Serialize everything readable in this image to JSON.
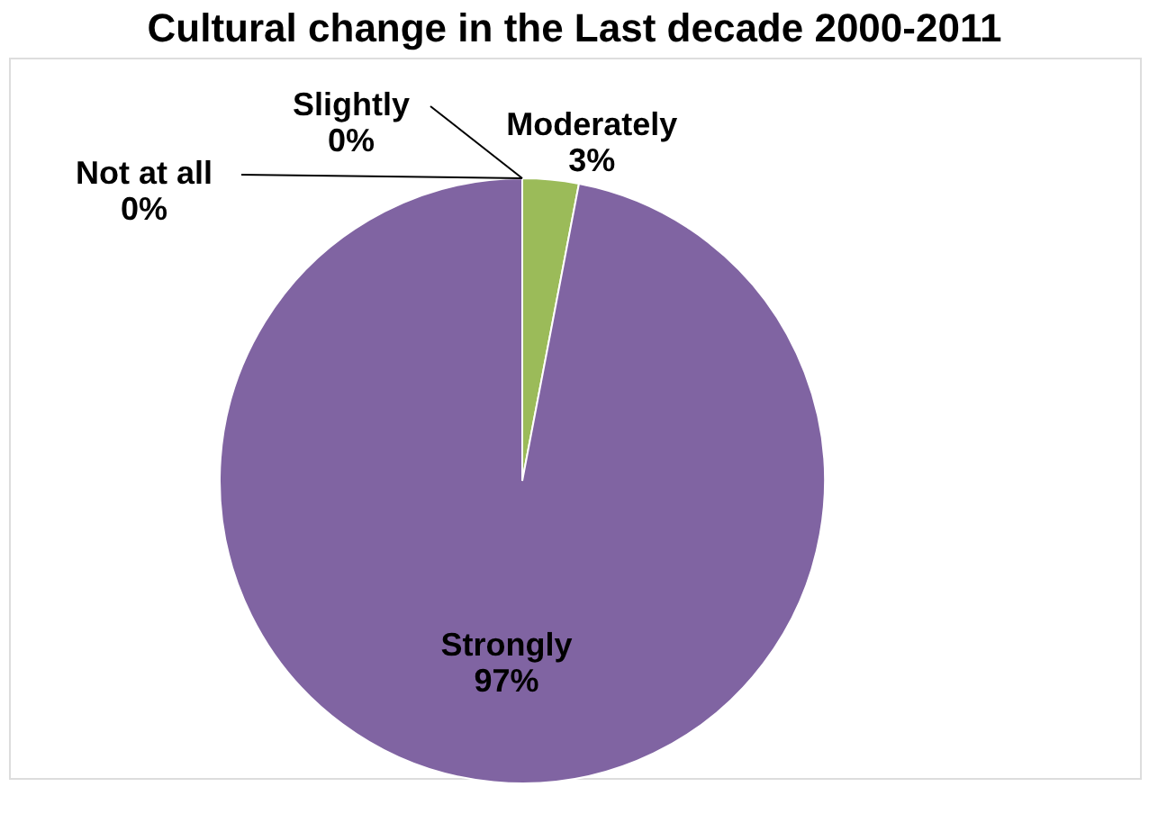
{
  "chart_data": {
    "type": "pie",
    "title": "Cultural change in the Last decade 2000-2011",
    "categories": [
      "Not at all",
      "Slightly",
      "Moderately",
      "Strongly"
    ],
    "values": [
      0,
      0,
      3,
      97
    ],
    "colors": [
      "#4f81bd",
      "#c0504d",
      "#9bbb59",
      "#8064a2"
    ],
    "value_labels": [
      "0%",
      "0%",
      "3%",
      "97%"
    ]
  }
}
